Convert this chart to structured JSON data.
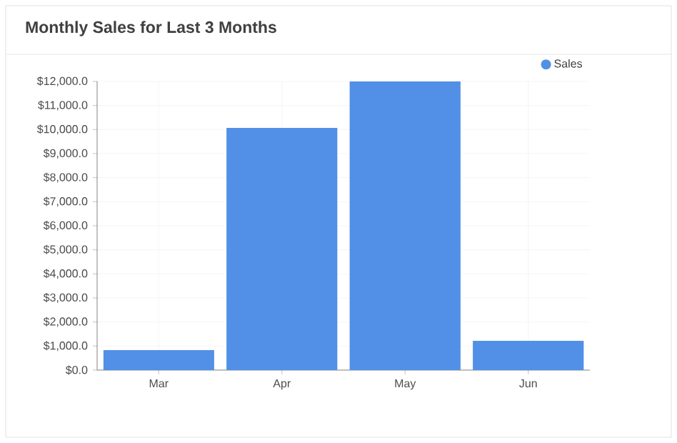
{
  "chart_data": {
    "type": "bar",
    "title": "Monthly Sales for Last 3 Months",
    "categories": [
      "Mar",
      "Apr",
      "May",
      "Jun"
    ],
    "series": [
      {
        "name": "Sales",
        "color": "#5190e6",
        "values": [
          830,
          10070,
          12000,
          1220
        ]
      }
    ],
    "ylim": [
      0,
      12000
    ],
    "yticks": [
      {
        "value": 0,
        "label": "$0.0"
      },
      {
        "value": 1000,
        "label": "$1,000.0"
      },
      {
        "value": 2000,
        "label": "$2,000.0"
      },
      {
        "value": 3000,
        "label": "$3,000.0"
      },
      {
        "value": 4000,
        "label": "$4,000.0"
      },
      {
        "value": 5000,
        "label": "$5,000.0"
      },
      {
        "value": 6000,
        "label": "$6,000.0"
      },
      {
        "value": 7000,
        "label": "$7,000.0"
      },
      {
        "value": 8000,
        "label": "$8,000.0"
      },
      {
        "value": 9000,
        "label": "$9,000.0"
      },
      {
        "value": 10000,
        "label": "$10,000.0"
      },
      {
        "value": 11000,
        "label": "$11,000.0"
      },
      {
        "value": 12000,
        "label": "$12,000.0"
      }
    ],
    "grid": true,
    "legend": "top right"
  }
}
